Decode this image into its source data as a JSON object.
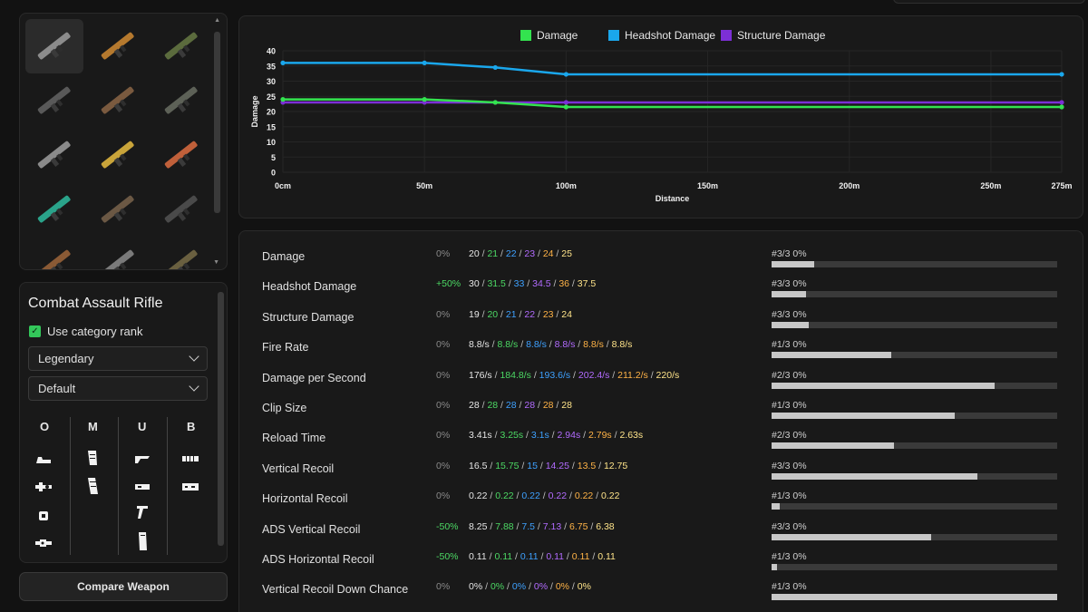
{
  "weapon_grid": [
    {
      "name": "combat-assault-rifle",
      "selected": true,
      "color": "#8c8c8c"
    },
    {
      "name": "orange-assault-rifle",
      "selected": false,
      "color": "#b5792e"
    },
    {
      "name": "green-rifle",
      "selected": false,
      "color": "#5b6b3d"
    },
    {
      "name": "tactical-gear",
      "selected": false,
      "color": "#595959"
    },
    {
      "name": "brown-shotgun",
      "selected": false,
      "color": "#7a5a3f"
    },
    {
      "name": "smg",
      "selected": false,
      "color": "#5d6157"
    },
    {
      "name": "grey-pistol",
      "selected": false,
      "color": "#8a8a8a"
    },
    {
      "name": "gold-pistol",
      "selected": false,
      "color": "#c9a43a"
    },
    {
      "name": "colorful-smg",
      "selected": false,
      "color": "#c0603a"
    },
    {
      "name": "teal-rifle",
      "selected": false,
      "color": "#2aa38a"
    },
    {
      "name": "wood-shotgun",
      "selected": false,
      "color": "#6b5844"
    },
    {
      "name": "dark-rifle",
      "selected": false,
      "color": "#4a4a4a"
    },
    {
      "name": "brown-weapon",
      "selected": false,
      "color": "#8a5a35"
    },
    {
      "name": "grey-weapon",
      "selected": false,
      "color": "#7a7a7a"
    },
    {
      "name": "olive-weapon",
      "selected": false,
      "color": "#6a6040"
    }
  ],
  "settings": {
    "weapon_name": "Combat Assault Rifle",
    "use_category_rank_label": "Use category rank",
    "use_category_rank_checked": true,
    "rarity": "Legendary",
    "variant": "Default",
    "attachment_headers": [
      "O",
      "M",
      "U",
      "B"
    ]
  },
  "compare_button_label": "Compare Weapon",
  "chart_data": {
    "type": "line",
    "series": [
      {
        "name": "Damage",
        "color": "#33e34f",
        "points": [
          [
            0,
            24
          ],
          [
            50,
            24
          ],
          [
            75,
            23
          ],
          [
            100,
            21.5
          ],
          [
            275,
            21.5
          ]
        ]
      },
      {
        "name": "Headshot Damage",
        "color": "#1aa7ec",
        "points": [
          [
            0,
            36
          ],
          [
            50,
            36
          ],
          [
            75,
            34.5
          ],
          [
            100,
            32.25
          ],
          [
            275,
            32.25
          ]
        ]
      },
      {
        "name": "Structure Damage",
        "color": "#7c2fd6",
        "points": [
          [
            0,
            23
          ],
          [
            50,
            23
          ],
          [
            75,
            23
          ],
          [
            100,
            23
          ],
          [
            275,
            23
          ]
        ]
      }
    ],
    "ylabel": "Damage",
    "xlabel": "Distance",
    "ylim": [
      0,
      40
    ],
    "yticks": [
      0,
      5,
      10,
      15,
      20,
      25,
      30,
      35,
      40
    ],
    "xticks": [
      {
        "value": 0,
        "label": "0cm"
      },
      {
        "value": 50,
        "label": "50m"
      },
      {
        "value": 100,
        "label": "100m"
      },
      {
        "value": 150,
        "label": "150m"
      },
      {
        "value": 200,
        "label": "200m"
      },
      {
        "value": 250,
        "label": "250m"
      },
      {
        "value": 275,
        "label": "275m"
      }
    ],
    "xlim": [
      0,
      275
    ],
    "grid": true,
    "legend_position": "top-center"
  },
  "stats": [
    {
      "name": "Damage",
      "modifier": "0%",
      "values": [
        "20",
        "21",
        "22",
        "23",
        "24",
        "25"
      ],
      "rank": "#3/3 0%",
      "bar": 0.15
    },
    {
      "name": "Headshot Damage",
      "modifier": "+50%",
      "values": [
        "30",
        "31.5",
        "33",
        "34.5",
        "36",
        "37.5"
      ],
      "rank": "#3/3 0%",
      "bar": 0.12
    },
    {
      "name": "Structure Damage",
      "modifier": "0%",
      "values": [
        "19",
        "20",
        "21",
        "22",
        "23",
        "24"
      ],
      "rank": "#3/3 0%",
      "bar": 0.13
    },
    {
      "name": "Fire Rate",
      "modifier": "0%",
      "values": [
        "8.8/s",
        "8.8/s",
        "8.8/s",
        "8.8/s",
        "8.8/s",
        "8.8/s"
      ],
      "rank": "#1/3 0%",
      "bar": 0.42
    },
    {
      "name": "Damage per Second",
      "modifier": "0%",
      "values": [
        "176/s",
        "184.8/s",
        "193.6/s",
        "202.4/s",
        "211.2/s",
        "220/s"
      ],
      "rank": "#2/3 0%",
      "bar": 0.78
    },
    {
      "name": "Clip Size",
      "modifier": "0%",
      "values": [
        "28",
        "28",
        "28",
        "28",
        "28",
        "28"
      ],
      "rank": "#1/3 0%",
      "bar": 0.64
    },
    {
      "name": "Reload Time",
      "modifier": "0%",
      "values": [
        "3.41s",
        "3.25s",
        "3.1s",
        "2.94s",
        "2.79s",
        "2.63s"
      ],
      "rank": "#2/3 0%",
      "bar": 0.43
    },
    {
      "name": "Vertical Recoil",
      "modifier": "0%",
      "values": [
        "16.5",
        "15.75",
        "15",
        "14.25",
        "13.5",
        "12.75"
      ],
      "rank": "#3/3 0%",
      "bar": 0.72
    },
    {
      "name": "Horizontal Recoil",
      "modifier": "0%",
      "values": [
        "0.22",
        "0.22",
        "0.22",
        "0.22",
        "0.22",
        "0.22"
      ],
      "rank": "#1/3 0%",
      "bar": 0.03
    },
    {
      "name": "ADS Vertical Recoil",
      "modifier": "-50%",
      "values": [
        "8.25",
        "7.88",
        "7.5",
        "7.13",
        "6.75",
        "6.38"
      ],
      "rank": "#3/3 0%",
      "bar": 0.56
    },
    {
      "name": "ADS Horizontal Recoil",
      "modifier": "-50%",
      "values": [
        "0.11",
        "0.11",
        "0.11",
        "0.11",
        "0.11",
        "0.11"
      ],
      "rank": "#1/3 0%",
      "bar": 0.02
    },
    {
      "name": "Vertical Recoil Down Chance",
      "modifier": "0%",
      "values": [
        "0%",
        "0%",
        "0%",
        "0%",
        "0%",
        "0%"
      ],
      "rank": "#1/3 0%",
      "bar": 1.0
    }
  ]
}
